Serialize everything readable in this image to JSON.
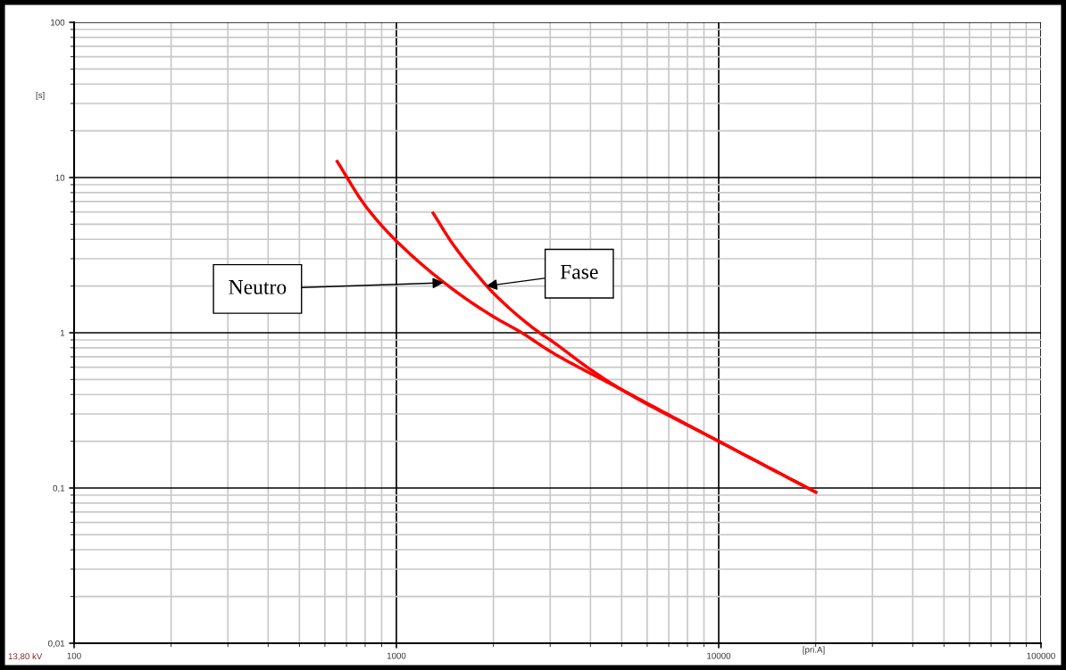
{
  "chart_data": {
    "type": "line",
    "xlabel": "[pri.A]",
    "ylabel": "[s]",
    "log": "xy",
    "grid": true,
    "marker": "none",
    "line_style": "solid",
    "xlim": [
      100,
      100000
    ],
    "xticks": [
      100,
      1000,
      10000,
      100000
    ],
    "ylim": [
      0.01,
      100
    ],
    "yticks": [
      {
        "value": 0.01,
        "label": "0,01"
      },
      {
        "value": 0.1,
        "label": "0,1"
      },
      1,
      10,
      100
    ],
    "series": [
      {
        "color": "#ff0000",
        "x": [
          655,
          800,
          1000,
          1500,
          2000,
          2450,
          3000,
          5000,
          10000,
          20000
        ],
        "values": [
          12.7,
          6.6,
          3.9,
          1.9,
          1.27,
          1.0,
          0.76,
          0.43,
          0.2,
          0.094
        ]
      },
      {
        "color": "#ff0000",
        "x": [
          1300,
          1500,
          1800,
          2000,
          2780,
          3000,
          4000,
          5000,
          10000,
          20000
        ],
        "values": [
          5.9,
          3.7,
          2.3,
          1.8,
          1.0,
          0.9,
          0.58,
          0.43,
          0.2,
          0.094
        ]
      }
    ],
    "annotations": [
      {
        "text": "Neutro",
        "x": 1400,
        "y": 2.1
      },
      {
        "text": "Fase",
        "x": 1900,
        "y": 2.0
      },
      "13,80 kV"
    ]
  }
}
